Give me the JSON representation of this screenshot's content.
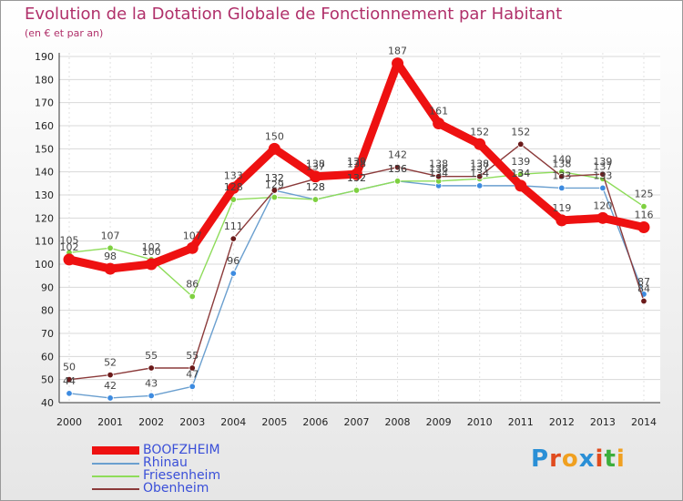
{
  "chart_data": {
    "type": "line",
    "title": "Evolution de la Dotation Globale de Fonctionnement par Habitant",
    "subtitle": "(en € et par an)",
    "xlabel": "",
    "ylabel": "",
    "ylim": [
      40,
      190
    ],
    "yticks": [
      40,
      50,
      60,
      70,
      80,
      90,
      100,
      110,
      120,
      130,
      140,
      150,
      160,
      170,
      180,
      190
    ],
    "categories": [
      "2000",
      "2001",
      "2002",
      "2003",
      "2004",
      "2005",
      "2006",
      "2007",
      "2008",
      "2009",
      "2010",
      "2011",
      "2012",
      "2013",
      "2014"
    ],
    "series": [
      {
        "name": "BOOFZHEIM",
        "color": "#ee1111",
        "marker": "#ee1111",
        "values": [
          102,
          98,
          100,
          107,
          133,
          150,
          138,
          139,
          187,
          161,
          152,
          134,
          119,
          120,
          116
        ]
      },
      {
        "name": "Rhinau",
        "color": "#6a9fcf",
        "marker": "#3d8be0",
        "values": [
          44,
          42,
          43,
          47,
          96,
          132,
          128,
          132,
          136,
          134,
          134,
          134,
          133,
          133,
          87
        ]
      },
      {
        "name": "Friesenheim",
        "color": "#8edc5a",
        "marker": "#7ed040",
        "values": [
          105,
          107,
          102,
          86,
          128,
          129,
          128,
          132,
          136,
          136,
          137,
          139,
          140,
          137,
          125
        ]
      },
      {
        "name": "Obenheim",
        "color": "#8b3a3a",
        "marker": "#6b1a1a",
        "values": [
          50,
          52,
          55,
          55,
          111,
          132,
          137,
          138,
          142,
          138,
          138,
          152,
          138,
          139,
          84
        ]
      }
    ]
  },
  "logo": {
    "text": "Proxiti",
    "letters": [
      "P",
      "r",
      "o",
      "x",
      "i",
      "t",
      "i"
    ],
    "colors": [
      "#2a8fd6",
      "#e04b1e",
      "#f0a020",
      "#2a8fd6",
      "#e04b1e",
      "#3cae3c",
      "#f0a020"
    ]
  }
}
